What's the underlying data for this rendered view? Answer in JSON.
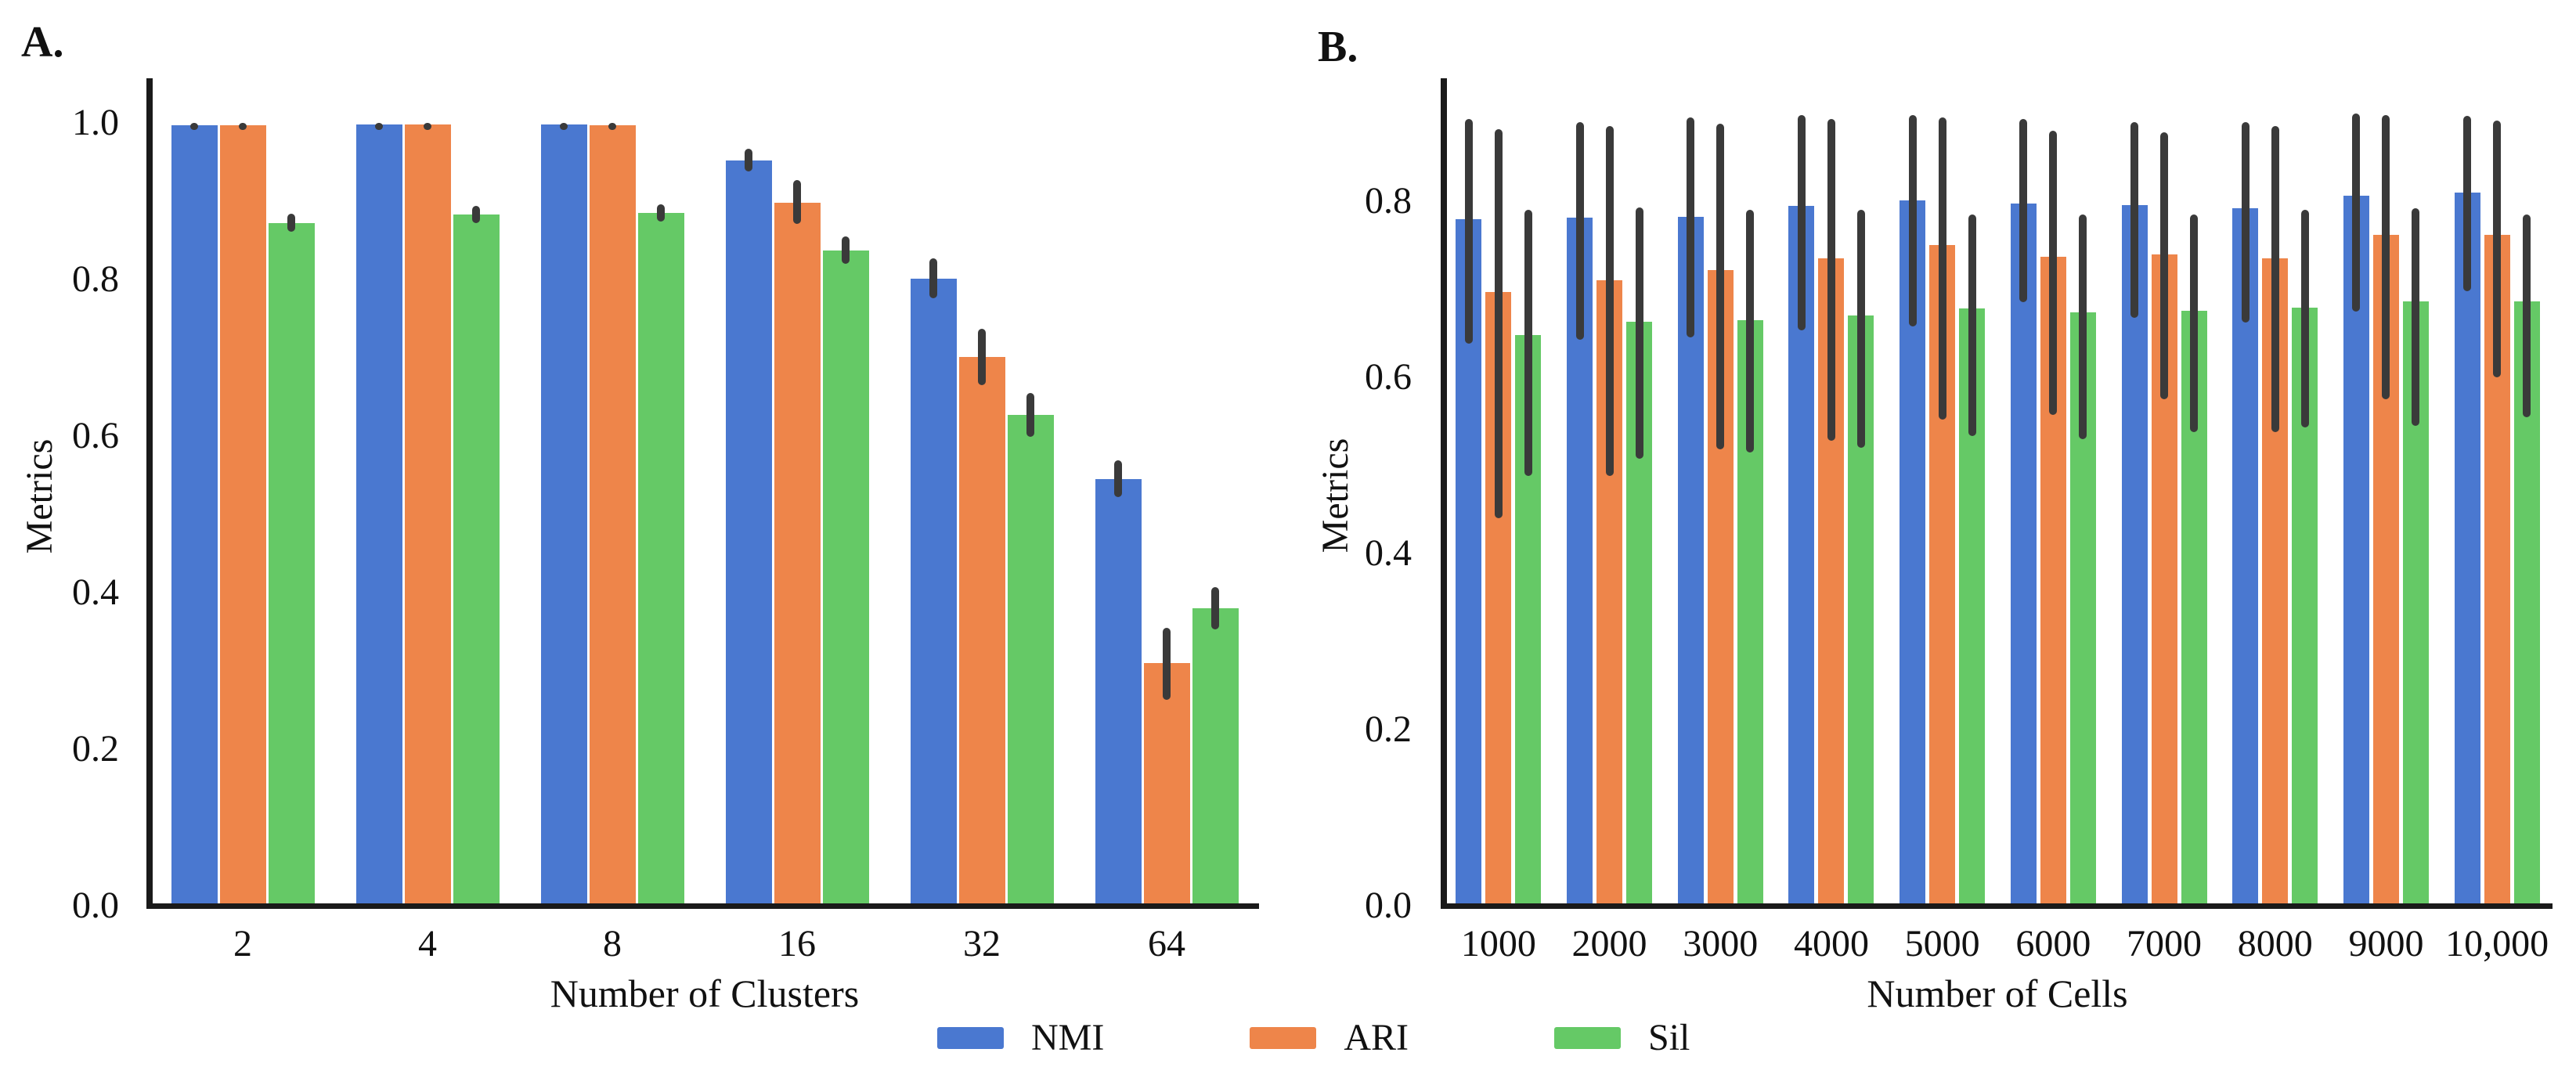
{
  "figure": {
    "background": "#ffffff",
    "text_color": "#111111",
    "axis_color": "#1a1a1a",
    "legend": {
      "items": [
        {
          "label": "NMI",
          "color": "#4a78d0"
        },
        {
          "label": "ARI",
          "color": "#ee854a"
        },
        {
          "label": "Sil",
          "color": "#65c966"
        }
      ]
    }
  },
  "chart_data": [
    {
      "panel": "A",
      "type": "bar",
      "title": "A.",
      "xlabel": "Number of Clusters",
      "ylabel": "Metrics",
      "categories": [
        "2",
        "4",
        "8",
        "16",
        "32",
        "64"
      ],
      "yticks": [
        1.0,
        0.8,
        0.6,
        0.4,
        0.2,
        0.0
      ],
      "ylim": [
        0.0,
        1.057
      ],
      "grid": false,
      "error_color": "#3a3a3a",
      "series": [
        {
          "name": "NMI",
          "color": "#4a78d0",
          "values": [
            0.997,
            0.998,
            0.998,
            0.952,
            0.801,
            0.545
          ],
          "err_lo": [
            0.993,
            0.995,
            0.995,
            0.938,
            0.776,
            0.522
          ],
          "err_hi": [
            1.0,
            1.0,
            1.0,
            0.967,
            0.827,
            0.569
          ]
        },
        {
          "name": "ARI",
          "color": "#ee854a",
          "values": [
            0.997,
            0.998,
            0.997,
            0.898,
            0.701,
            0.31
          ],
          "err_lo": [
            0.993,
            0.995,
            0.994,
            0.871,
            0.665,
            0.263
          ],
          "err_hi": [
            1.0,
            1.0,
            1.0,
            0.927,
            0.737,
            0.355
          ]
        },
        {
          "name": "Sil",
          "color": "#65c966",
          "values": [
            0.872,
            0.883,
            0.885,
            0.837,
            0.627,
            0.38
          ],
          "err_lo": [
            0.861,
            0.872,
            0.874,
            0.82,
            0.599,
            0.353
          ],
          "err_hi": [
            0.884,
            0.894,
            0.896,
            0.855,
            0.655,
            0.407
          ]
        }
      ]
    },
    {
      "panel": "B",
      "type": "bar",
      "title": "B.",
      "xlabel": "Number of Cells",
      "ylabel": "Metrics",
      "categories": [
        "1000",
        "2000",
        "3000",
        "4000",
        "5000",
        "6000",
        "7000",
        "8000",
        "9000",
        "10,000"
      ],
      "yticks": [
        0.8,
        0.6,
        0.4,
        0.2,
        0.0
      ],
      "ylim": [
        0.0,
        0.94
      ],
      "grid": false,
      "error_color": "#3a3a3a",
      "series": [
        {
          "name": "NMI",
          "color": "#4a78d0",
          "values": [
            0.78,
            0.781,
            0.782,
            0.795,
            0.801,
            0.797,
            0.796,
            0.792,
            0.806,
            0.81
          ],
          "err_lo": [
            0.638,
            0.643,
            0.645,
            0.653,
            0.658,
            0.685,
            0.668,
            0.662,
            0.675,
            0.698
          ],
          "err_hi": [
            0.893,
            0.89,
            0.895,
            0.898,
            0.898,
            0.893,
            0.89,
            0.89,
            0.9,
            0.897
          ]
        },
        {
          "name": "ARI",
          "color": "#ee854a",
          "values": [
            0.697,
            0.71,
            0.722,
            0.735,
            0.75,
            0.737,
            0.74,
            0.735,
            0.762,
            0.762
          ],
          "err_lo": [
            0.44,
            0.488,
            0.518,
            0.528,
            0.552,
            0.557,
            0.575,
            0.538,
            0.575,
            0.6
          ],
          "err_hi": [
            0.882,
            0.885,
            0.888,
            0.893,
            0.895,
            0.88,
            0.878,
            0.885,
            0.898,
            0.892
          ]
        },
        {
          "name": "Sil",
          "color": "#65c966",
          "values": [
            0.648,
            0.663,
            0.665,
            0.67,
            0.678,
            0.674,
            0.676,
            0.679,
            0.686,
            0.686
          ],
          "err_lo": [
            0.488,
            0.508,
            0.515,
            0.52,
            0.533,
            0.53,
            0.538,
            0.543,
            0.545,
            0.555
          ],
          "err_hi": [
            0.79,
            0.793,
            0.79,
            0.79,
            0.785,
            0.785,
            0.785,
            0.79,
            0.792,
            0.785
          ]
        }
      ]
    }
  ]
}
